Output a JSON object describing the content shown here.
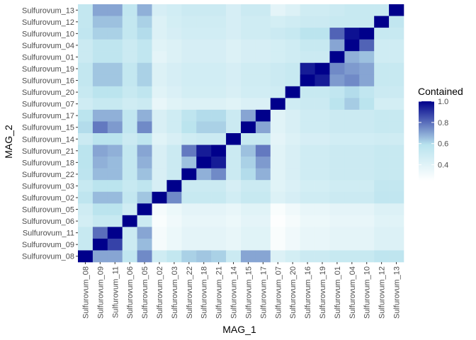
{
  "chart_data": {
    "type": "heatmap",
    "xlabel": "MAG_1",
    "ylabel": "MAG_2",
    "x_categories": [
      "Sulfurovum_08",
      "Sulfurovum_09",
      "Sulfurovum_11",
      "Sulfurovum_06",
      "Sulfurovum_05",
      "Sulfurovum_02",
      "Sulfurovum_03",
      "Sulfurovum_22",
      "Sulfurovum_18",
      "Sulfurovum_21",
      "Sulfurovum_14",
      "Sulfurovum_15",
      "Sulfurovum_17",
      "Sulfurovum_07",
      "Sulfurovum_20",
      "Sulfurovum_16",
      "Sulfurovum_19",
      "Sulfurovum_01",
      "Sulfurovum_04",
      "Sulfurovum_10",
      "Sulfurovum_12",
      "Sulfurovum_13"
    ],
    "y_categories": [
      "Sulfurovum_13",
      "Sulfurovum_12",
      "Sulfurovum_10",
      "Sulfurovum_04",
      "Sulfurovum_01",
      "Sulfurovum_19",
      "Sulfurovum_16",
      "Sulfurovum_20",
      "Sulfurovum_07",
      "Sulfurovum_17",
      "Sulfurovum_15",
      "Sulfurovum_14",
      "Sulfurovum_21",
      "Sulfurovum_18",
      "Sulfurovum_22",
      "Sulfurovum_03",
      "Sulfurovum_02",
      "Sulfurovum_05",
      "Sulfurovum_06",
      "Sulfurovum_11",
      "Sulfurovum_09",
      "Sulfurovum_08"
    ],
    "values": [
      [
        0.54,
        0.7,
        0.7,
        0.55,
        0.68,
        0.45,
        0.47,
        0.5,
        0.5,
        0.5,
        0.45,
        0.5,
        0.5,
        0.38,
        0.42,
        0.48,
        0.48,
        0.5,
        0.52,
        0.52,
        0.52,
        1.0
      ],
      [
        0.54,
        0.65,
        0.65,
        0.54,
        0.62,
        0.42,
        0.46,
        0.48,
        0.48,
        0.48,
        0.45,
        0.48,
        0.48,
        0.46,
        0.48,
        0.5,
        0.5,
        0.52,
        0.52,
        0.52,
        1.0,
        0.55
      ],
      [
        0.55,
        0.62,
        0.62,
        0.54,
        0.6,
        0.42,
        0.45,
        0.47,
        0.47,
        0.47,
        0.45,
        0.48,
        0.48,
        0.5,
        0.52,
        0.58,
        0.58,
        0.82,
        0.97,
        1.0,
        0.52,
        0.52
      ],
      [
        0.5,
        0.56,
        0.56,
        0.5,
        0.55,
        0.4,
        0.42,
        0.45,
        0.45,
        0.45,
        0.42,
        0.45,
        0.45,
        0.46,
        0.48,
        0.52,
        0.52,
        0.7,
        1.0,
        0.82,
        0.48,
        0.48
      ],
      [
        0.5,
        0.56,
        0.56,
        0.5,
        0.55,
        0.38,
        0.42,
        0.45,
        0.45,
        0.45,
        0.42,
        0.45,
        0.45,
        0.46,
        0.48,
        0.5,
        0.5,
        1.0,
        0.68,
        0.65,
        0.48,
        0.48
      ],
      [
        0.54,
        0.64,
        0.64,
        0.54,
        0.62,
        0.42,
        0.45,
        0.47,
        0.47,
        0.47,
        0.45,
        0.48,
        0.48,
        0.5,
        0.52,
        0.95,
        1.0,
        0.75,
        0.72,
        0.7,
        0.52,
        0.52
      ],
      [
        0.54,
        0.64,
        0.64,
        0.54,
        0.62,
        0.42,
        0.45,
        0.47,
        0.47,
        0.47,
        0.45,
        0.48,
        0.48,
        0.5,
        0.52,
        1.0,
        0.95,
        0.72,
        0.75,
        0.7,
        0.52,
        0.52
      ],
      [
        0.52,
        0.58,
        0.58,
        0.52,
        0.56,
        0.4,
        0.43,
        0.46,
        0.46,
        0.46,
        0.44,
        0.47,
        0.47,
        0.48,
        1.0,
        0.52,
        0.52,
        0.55,
        0.6,
        0.55,
        0.5,
        0.5
      ],
      [
        0.48,
        0.52,
        0.52,
        0.48,
        0.5,
        0.36,
        0.4,
        0.42,
        0.42,
        0.42,
        0.4,
        0.43,
        0.43,
        1.0,
        0.48,
        0.5,
        0.5,
        0.58,
        0.63,
        0.58,
        0.46,
        0.46
      ],
      [
        0.58,
        0.68,
        0.68,
        0.55,
        0.68,
        0.44,
        0.48,
        0.56,
        0.6,
        0.6,
        0.5,
        0.7,
        1.0,
        0.4,
        0.44,
        0.48,
        0.48,
        0.5,
        0.5,
        0.5,
        0.52,
        0.52
      ],
      [
        0.6,
        0.78,
        0.72,
        0.55,
        0.75,
        0.44,
        0.48,
        0.58,
        0.62,
        0.62,
        0.5,
        1.0,
        0.7,
        0.4,
        0.44,
        0.48,
        0.48,
        0.5,
        0.5,
        0.5,
        0.52,
        0.52
      ],
      [
        0.5,
        0.58,
        0.58,
        0.5,
        0.56,
        0.4,
        0.44,
        0.48,
        0.5,
        0.5,
        1.0,
        0.52,
        0.52,
        0.38,
        0.42,
        0.45,
        0.45,
        0.47,
        0.47,
        0.47,
        0.48,
        0.48
      ],
      [
        0.58,
        0.7,
        0.68,
        0.54,
        0.7,
        0.44,
        0.5,
        0.78,
        0.95,
        1.0,
        0.5,
        0.65,
        0.78,
        0.4,
        0.44,
        0.48,
        0.48,
        0.5,
        0.5,
        0.5,
        0.52,
        0.52
      ],
      [
        0.58,
        0.68,
        0.66,
        0.54,
        0.68,
        0.44,
        0.5,
        0.65,
        1.0,
        0.95,
        0.5,
        0.62,
        0.72,
        0.4,
        0.44,
        0.48,
        0.48,
        0.5,
        0.5,
        0.5,
        0.52,
        0.52
      ],
      [
        0.57,
        0.66,
        0.66,
        0.54,
        0.65,
        0.44,
        0.5,
        1.0,
        0.68,
        0.75,
        0.5,
        0.6,
        0.68,
        0.4,
        0.44,
        0.48,
        0.48,
        0.5,
        0.5,
        0.5,
        0.52,
        0.52
      ],
      [
        0.52,
        0.58,
        0.58,
        0.52,
        0.56,
        0.45,
        1.0,
        0.5,
        0.5,
        0.5,
        0.45,
        0.5,
        0.5,
        0.4,
        0.43,
        0.46,
        0.46,
        0.48,
        0.48,
        0.48,
        0.54,
        0.54
      ],
      [
        0.56,
        0.66,
        0.66,
        0.54,
        0.64,
        1.0,
        0.75,
        0.52,
        0.52,
        0.52,
        0.47,
        0.52,
        0.52,
        0.42,
        0.45,
        0.48,
        0.48,
        0.5,
        0.5,
        0.5,
        0.55,
        0.55
      ],
      [
        0.48,
        0.58,
        0.58,
        0.48,
        1.0,
        0.3,
        0.34,
        0.38,
        0.38,
        0.38,
        0.36,
        0.4,
        0.4,
        0.28,
        0.32,
        0.36,
        0.36,
        0.38,
        0.38,
        0.38,
        0.42,
        0.42
      ],
      [
        0.46,
        0.52,
        0.52,
        1.0,
        0.5,
        0.28,
        0.32,
        0.36,
        0.36,
        0.36,
        0.34,
        0.38,
        0.38,
        0.26,
        0.3,
        0.34,
        0.34,
        0.36,
        0.36,
        0.36,
        0.4,
        0.4
      ],
      [
        0.52,
        0.8,
        1.0,
        0.5,
        0.7,
        0.3,
        0.34,
        0.38,
        0.38,
        0.38,
        0.36,
        0.4,
        0.4,
        0.28,
        0.32,
        0.36,
        0.36,
        0.38,
        0.38,
        0.38,
        0.42,
        0.42
      ],
      [
        0.52,
        1.0,
        0.88,
        0.5,
        0.66,
        0.3,
        0.34,
        0.38,
        0.38,
        0.38,
        0.36,
        0.4,
        0.4,
        0.28,
        0.32,
        0.36,
        0.36,
        0.38,
        0.38,
        0.38,
        0.42,
        0.42
      ],
      [
        1.0,
        0.7,
        0.7,
        0.55,
        0.75,
        0.48,
        0.54,
        0.62,
        0.64,
        0.62,
        0.5,
        0.7,
        0.7,
        0.42,
        0.46,
        0.5,
        0.5,
        0.52,
        0.52,
        0.52,
        0.56,
        0.56
      ]
    ],
    "color_scale": {
      "title": "Contained",
      "low_color": "#ffffff",
      "mid_color": "#b9e3ee",
      "high_color": "#00008b",
      "min": 0.25,
      "max": 1.0,
      "ticks": [
        0.4,
        0.6,
        0.8,
        1.0
      ],
      "tick_labels": [
        "0.4",
        "0.6",
        "0.8",
        "1.0"
      ]
    },
    "panel_background": "#ebebeb",
    "grid": true,
    "legend_position": "right"
  }
}
